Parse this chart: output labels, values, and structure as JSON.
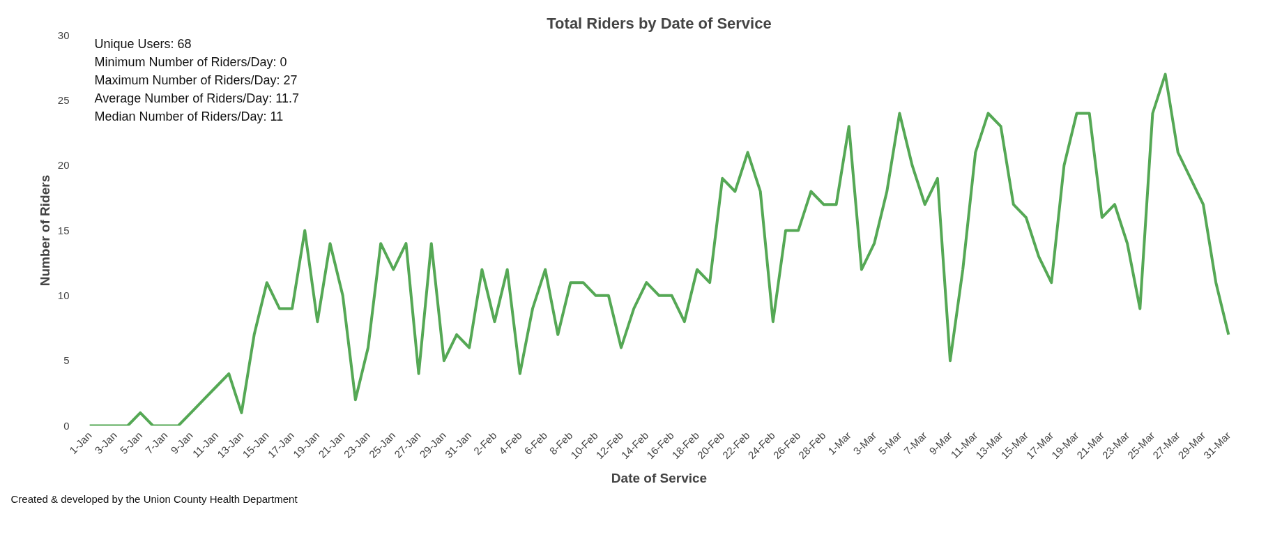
{
  "chart_data": {
    "type": "line",
    "title": "Total Riders by Date of Service",
    "xlabel": "Date of Service",
    "ylabel": "Number of Riders",
    "categories": [
      "1-Jan",
      null,
      "3-Jan",
      null,
      "5-Jan",
      null,
      "7-Jan",
      null,
      "9-Jan",
      null,
      "11-Jan",
      null,
      "13-Jan",
      null,
      "15-Jan",
      null,
      "17-Jan",
      null,
      "19-Jan",
      null,
      "21-Jan",
      null,
      "23-Jan",
      null,
      "25-Jan",
      null,
      "27-Jan",
      null,
      "29-Jan",
      null,
      "31-Jan",
      null,
      "2-Feb",
      null,
      "4-Feb",
      null,
      "6-Feb",
      null,
      "8-Feb",
      null,
      "10-Feb",
      null,
      "12-Feb",
      null,
      "14-Feb",
      null,
      "16-Feb",
      null,
      "18-Feb",
      null,
      "20-Feb",
      null,
      "22-Feb",
      null,
      "24-Feb",
      null,
      "26-Feb",
      null,
      "28-Feb",
      null,
      "1-Mar",
      null,
      "3-Mar",
      null,
      "5-Mar",
      null,
      "7-Mar",
      null,
      "9-Mar",
      null,
      "11-Mar",
      null,
      "13-Mar",
      null,
      "15-Mar",
      null,
      "17-Mar",
      null,
      "19-Mar",
      null,
      "21-Mar",
      null,
      "23-Mar",
      null,
      "25-Mar",
      null,
      "27-Mar",
      null,
      "29-Mar",
      null,
      "31-Mar"
    ],
    "series": [
      {
        "color": "#55a855",
        "values": [
          0,
          0,
          0,
          0,
          1,
          0,
          0,
          0,
          1,
          2,
          3,
          4,
          1,
          7,
          11,
          9,
          9,
          15,
          8,
          14,
          10,
          2,
          6,
          14,
          12,
          14,
          4,
          14,
          5,
          7,
          6,
          12,
          8,
          12,
          4,
          9,
          12,
          7,
          11,
          11,
          10,
          10,
          6,
          9,
          11,
          10,
          10,
          8,
          12,
          11,
          19,
          18,
          21,
          18,
          8,
          15,
          15,
          18,
          17,
          17,
          23,
          12,
          14,
          18,
          24,
          20,
          17,
          19,
          5,
          12,
          21,
          24,
          23,
          17,
          16,
          13,
          11,
          20,
          24,
          24,
          16,
          17,
          14,
          9,
          24,
          27,
          21,
          19,
          17,
          11,
          7
        ]
      }
    ],
    "ylim": [
      0,
      30
    ],
    "yticks": [
      0,
      5,
      10,
      15,
      20,
      25,
      30
    ],
    "grid": false,
    "marker": "none",
    "line_style": "solid",
    "annotations": [
      "Unique Users: 68",
      "Minimum Number of Riders/Day: 0",
      "Maximum Number of Riders/Day: 27",
      "Average Number of Riders/Day: 11.7",
      "Median Number of Riders/Day: 11",
      "Created & developed by the Union County Health Department"
    ]
  }
}
